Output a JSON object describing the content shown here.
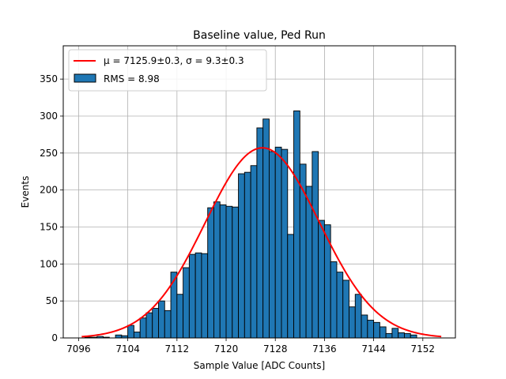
{
  "chart_data": {
    "type": "bar",
    "title": "Baseline value, Ped Run",
    "xlabel": "Sample Value [ADC Counts]",
    "ylabel": "Events",
    "xlim": [
      7093.5,
      7157.3
    ],
    "ylim": [
      0,
      395
    ],
    "grid": true,
    "legend_position": "top-left",
    "x_ticks": [
      7096,
      7104,
      7112,
      7120,
      7128,
      7136,
      7144,
      7152
    ],
    "y_ticks": [
      0,
      50,
      100,
      150,
      200,
      250,
      300,
      350
    ],
    "bar_color": "#1f77b4",
    "fit_color": "#ff0000",
    "bin_width": 1,
    "bins_start": [
      7097,
      7098,
      7099,
      7100,
      7101,
      7102,
      7103,
      7104,
      7105,
      7106,
      7107,
      7108,
      7109,
      7110,
      7111,
      7112,
      7113,
      7114,
      7115,
      7116,
      7117,
      7118,
      7119,
      7120,
      7121,
      7122,
      7123,
      7124,
      7125,
      7126,
      7127,
      7128,
      7129,
      7130,
      7131,
      7132,
      7133,
      7134,
      7135,
      7136,
      7137,
      7138,
      7139,
      7140,
      7141,
      7142,
      7143,
      7144,
      7145,
      7146,
      7147,
      7148,
      7149,
      7150,
      7151,
      7152,
      7153
    ],
    "counts": [
      1,
      1,
      2,
      1,
      0,
      4,
      3,
      17,
      8,
      27,
      34,
      40,
      50,
      37,
      89,
      59,
      95,
      113,
      115,
      114,
      176,
      184,
      180,
      178,
      177,
      222,
      224,
      233,
      284,
      296,
      252,
      258,
      255,
      140,
      307,
      235,
      205,
      252,
      159,
      153,
      103,
      89,
      78,
      42,
      59,
      31,
      24,
      21,
      15,
      6,
      13,
      7,
      6,
      4,
      0,
      0,
      0
    ],
    "fit": {
      "type": "gaussian",
      "mu": 7125.9,
      "sigma": 9.3,
      "amplitude": 257,
      "x_range": [
        7096.5,
        7155
      ]
    },
    "legend": {
      "fit_label": "μ = 7125.9±0.3, σ = 9.3±0.3",
      "hist_label": "RMS = 8.98"
    }
  }
}
